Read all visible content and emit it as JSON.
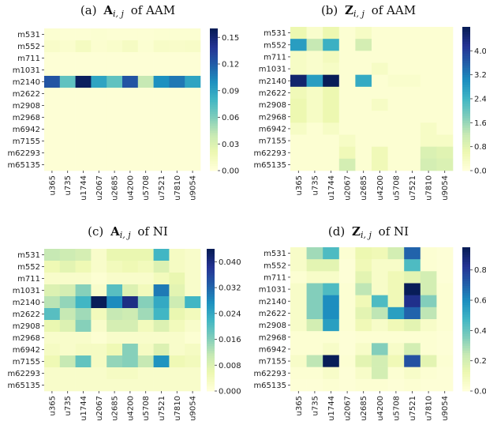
{
  "colormap": [
    "#ffffd9",
    "#edf8b1",
    "#c7e9b4",
    "#7fcdbb",
    "#41b6c4",
    "#1d91c0",
    "#225ea8",
    "#253494",
    "#081d58"
  ],
  "chart_data": [
    {
      "type": "heatmap",
      "panel": "(a)",
      "title": {
        "label": "(a)",
        "symbol": "A",
        "subscript": "i, j",
        "suffix": "of AAM"
      },
      "rows": [
        "m531",
        "m552",
        "m711",
        "m1031",
        "m2140",
        "m2622",
        "m2908",
        "m2968",
        "m6942",
        "m7155",
        "m62293",
        "m65135"
      ],
      "cols": [
        "u365",
        "u735",
        "u1744",
        "u2067",
        "u2685",
        "u4200",
        "u5708",
        "u7521",
        "u7810",
        "u9054"
      ],
      "vmin": 0,
      "vmax": 0.16,
      "colorbar_ticks": [
        "0.00",
        "0.03",
        "0.06",
        "0.09",
        "0.12",
        "0.15"
      ],
      "colorbar_tick_values": [
        0,
        0.03,
        0.06,
        0.09,
        0.12,
        0.15
      ],
      "values": [
        [
          0.004,
          0.003,
          0.003,
          0.004,
          0.003,
          0.003,
          0.003,
          0.004,
          0.004,
          0.004
        ],
        [
          0.008,
          0.006,
          0.012,
          0.005,
          0.007,
          0.011,
          0.004,
          0.009,
          0.008,
          0.009
        ],
        [
          0.002,
          0.002,
          0.002,
          0.002,
          0.002,
          0.002,
          0.002,
          0.002,
          0.002,
          0.002
        ],
        [
          0.002,
          0.002,
          0.002,
          0.002,
          0.002,
          0.002,
          0.002,
          0.002,
          0.002,
          0.002
        ],
        [
          0.125,
          0.07,
          0.158,
          0.09,
          0.07,
          0.125,
          0.04,
          0.1,
          0.11,
          0.09
        ],
        [
          0.002,
          0.002,
          0.002,
          0.002,
          0.002,
          0.002,
          0.002,
          0.002,
          0.002,
          0.002
        ],
        [
          0.002,
          0.002,
          0.002,
          0.002,
          0.002,
          0.002,
          0.002,
          0.002,
          0.002,
          0.002
        ],
        [
          0.002,
          0.002,
          0.002,
          0.002,
          0.002,
          0.002,
          0.002,
          0.002,
          0.002,
          0.002
        ],
        [
          0.002,
          0.002,
          0.002,
          0.002,
          0.002,
          0.002,
          0.002,
          0.002,
          0.002,
          0.002
        ],
        [
          0.002,
          0.002,
          0.002,
          0.002,
          0.002,
          0.002,
          0.002,
          0.002,
          0.002,
          0.002
        ],
        [
          0.002,
          0.002,
          0.002,
          0.002,
          0.002,
          0.002,
          0.002,
          0.002,
          0.002,
          0.002
        ],
        [
          0.002,
          0.002,
          0.002,
          0.002,
          0.002,
          0.002,
          0.002,
          0.002,
          0.002,
          0.002
        ]
      ]
    },
    {
      "type": "heatmap",
      "panel": "(b)",
      "title": {
        "label": "(b)",
        "symbol": "Z",
        "subscript": "i, j",
        "suffix": "of AAM"
      },
      "rows": [
        "m531",
        "m552",
        "m711",
        "m1031",
        "m2140",
        "m2622",
        "m2908",
        "m2968",
        "m6942",
        "m7155",
        "m62293",
        "m65135"
      ],
      "cols": [
        "u365",
        "u735",
        "u1744",
        "u2067",
        "u2685",
        "u4200",
        "u5708",
        "u7521",
        "u7810",
        "u9054"
      ],
      "vmin": 0,
      "vmax": 4.8,
      "colorbar_ticks": [
        "0.0",
        "0.8",
        "1.6",
        "2.4",
        "3.2",
        "4.0"
      ],
      "colorbar_tick_values": [
        0,
        0.8,
        1.6,
        2.4,
        3.2,
        4.0
      ],
      "values": [
        [
          0.6,
          0.2,
          0.6,
          0.1,
          0.3,
          0.1,
          0.1,
          0.1,
          0.1,
          0.1
        ],
        [
          2.8,
          1.2,
          2.5,
          0.1,
          1.0,
          0.1,
          0.1,
          0.1,
          0.1,
          0.1
        ],
        [
          0.3,
          0.2,
          0.4,
          0.1,
          0.1,
          0.1,
          0.1,
          0.1,
          0.1,
          0.1
        ],
        [
          0.3,
          0.2,
          0.3,
          0.1,
          0.1,
          0.3,
          0.1,
          0.1,
          0.1,
          0.1
        ],
        [
          4.6,
          2.8,
          4.9,
          0.1,
          2.6,
          0.1,
          0.2,
          0.2,
          0.1,
          0.1
        ],
        [
          0.5,
          0.3,
          0.6,
          0.1,
          0.1,
          0.1,
          0.1,
          0.1,
          0.1,
          0.1
        ],
        [
          0.6,
          0.3,
          0.6,
          0.1,
          0.1,
          0.3,
          0.1,
          0.1,
          0.1,
          0.1
        ],
        [
          0.6,
          0.3,
          0.6,
          0.1,
          0.1,
          0.1,
          0.1,
          0.1,
          0.1,
          0.1
        ],
        [
          0.3,
          0.1,
          0.3,
          0.1,
          0.1,
          0.1,
          0.1,
          0.1,
          0.3,
          0.1
        ],
        [
          0.1,
          0.1,
          0.1,
          0.3,
          0.1,
          0.1,
          0.1,
          0.1,
          0.3,
          0.3
        ],
        [
          0.1,
          0.1,
          0.1,
          0.5,
          0.1,
          0.5,
          0.1,
          0.1,
          0.9,
          0.8
        ],
        [
          0.1,
          0.1,
          0.1,
          1.0,
          0.1,
          0.5,
          0.1,
          0.1,
          1.0,
          0.9
        ]
      ]
    },
    {
      "type": "heatmap",
      "panel": "(c)",
      "title": {
        "label": "(c)",
        "symbol": "A",
        "subscript": "i, j",
        "suffix": "of NI"
      },
      "rows": [
        "m531",
        "m552",
        "m711",
        "m1031",
        "m2140",
        "m2622",
        "m2908",
        "m2968",
        "m6942",
        "m7155",
        "m62293",
        "m65135"
      ],
      "cols": [
        "u365",
        "u735",
        "u1744",
        "u2067",
        "u2685",
        "u4200",
        "u5708",
        "u7521",
        "u7810",
        "u9054"
      ],
      "vmin": 0,
      "vmax": 0.044,
      "colorbar_ticks": [
        "0.000",
        "0.008",
        "0.016",
        "0.024",
        "0.032",
        "0.040"
      ],
      "colorbar_tick_values": [
        0,
        0.008,
        0.016,
        0.024,
        0.032,
        0.04
      ],
      "values": [
        [
          0.011,
          0.01,
          0.009,
          0.002,
          0.006,
          0.006,
          0.006,
          0.022,
          0.003,
          0.002
        ],
        [
          0.005,
          0.007,
          0.005,
          0.002,
          0.004,
          0.005,
          0.004,
          0.008,
          0.003,
          0.002
        ],
        [
          0.002,
          0.002,
          0.002,
          0.001,
          0.002,
          0.002,
          0.002,
          0.004,
          0.006,
          0.002
        ],
        [
          0.008,
          0.009,
          0.016,
          0.002,
          0.02,
          0.008,
          0.004,
          0.03,
          0.007,
          0.002
        ],
        [
          0.012,
          0.015,
          0.022,
          0.044,
          0.028,
          0.04,
          0.016,
          0.024,
          0.01,
          0.022
        ],
        [
          0.02,
          0.011,
          0.014,
          0.004,
          0.011,
          0.01,
          0.014,
          0.022,
          0.006,
          0.004
        ],
        [
          0.006,
          0.008,
          0.016,
          0.002,
          0.009,
          0.009,
          0.004,
          0.008,
          0.004,
          0.002
        ],
        [
          0.002,
          0.002,
          0.002,
          0.001,
          0.002,
          0.002,
          0.002,
          0.002,
          0.002,
          0.001
        ],
        [
          0.003,
          0.002,
          0.003,
          0.003,
          0.005,
          0.016,
          0.003,
          0.008,
          0.002,
          0.003
        ],
        [
          0.005,
          0.011,
          0.019,
          0.003,
          0.015,
          0.016,
          0.011,
          0.027,
          0.005,
          0.004
        ],
        [
          0.002,
          0.002,
          0.002,
          0.002,
          0.003,
          0.003,
          0.002,
          0.002,
          0.002,
          0.002
        ],
        [
          0.002,
          0.002,
          0.002,
          0.002,
          0.002,
          0.002,
          0.002,
          0.002,
          0.002,
          0.002
        ]
      ]
    },
    {
      "type": "heatmap",
      "panel": "(d)",
      "title": {
        "label": "(d)",
        "symbol": "Z",
        "subscript": "i, j",
        "suffix": "of NI"
      },
      "rows": [
        "m531",
        "m552",
        "m711",
        "m1031",
        "m2140",
        "m2622",
        "m2908",
        "m2968",
        "m6942",
        "m7155",
        "m62293",
        "m65135"
      ],
      "cols": [
        "u365",
        "u735",
        "u1744",
        "u2067",
        "u2685",
        "u4200",
        "u5708",
        "u7521",
        "u7810",
        "u9054"
      ],
      "vmin": 0,
      "vmax": 0.95,
      "colorbar_ticks": [
        "0.0",
        "0.2",
        "0.4",
        "0.6",
        "0.8"
      ],
      "colorbar_tick_values": [
        0,
        0.2,
        0.4,
        0.6,
        0.8
      ],
      "values": [
        [
          0.05,
          0.3,
          0.45,
          0.02,
          0.12,
          0.1,
          0.2,
          0.7,
          0.02,
          0.01
        ],
        [
          0.05,
          0.15,
          0.15,
          0.01,
          0.1,
          0.05,
          0.05,
          0.45,
          0.02,
          0.01
        ],
        [
          0.02,
          0.05,
          0.05,
          0.01,
          0.15,
          0.05,
          0.1,
          0.15,
          0.2,
          0.01
        ],
        [
          0.05,
          0.35,
          0.45,
          0.02,
          0.25,
          0.05,
          0.1,
          0.95,
          0.2,
          0.02
        ],
        [
          0.05,
          0.35,
          0.6,
          0.02,
          0.1,
          0.45,
          0.1,
          0.85,
          0.35,
          0.02
        ],
        [
          0.05,
          0.35,
          0.6,
          0.02,
          0.15,
          0.25,
          0.55,
          0.7,
          0.25,
          0.02
        ],
        [
          0.05,
          0.2,
          0.55,
          0.02,
          0.1,
          0.05,
          0.1,
          0.15,
          0.05,
          0.02
        ],
        [
          0.02,
          0.02,
          0.02,
          0.01,
          0.02,
          0.02,
          0.02,
          0.02,
          0.02,
          0.01
        ],
        [
          0.02,
          0.02,
          0.05,
          0.01,
          0.05,
          0.35,
          0.05,
          0.2,
          0.02,
          0.01
        ],
        [
          0.05,
          0.25,
          0.95,
          0.02,
          0.15,
          0.2,
          0.1,
          0.75,
          0.15,
          0.02
        ],
        [
          0.02,
          0.02,
          0.05,
          0.01,
          0.05,
          0.2,
          0.02,
          0.05,
          0.02,
          0.01
        ],
        [
          0.01,
          0.01,
          0.02,
          0.01,
          0.02,
          0.02,
          0.01,
          0.02,
          0.01,
          0.01
        ]
      ]
    }
  ]
}
